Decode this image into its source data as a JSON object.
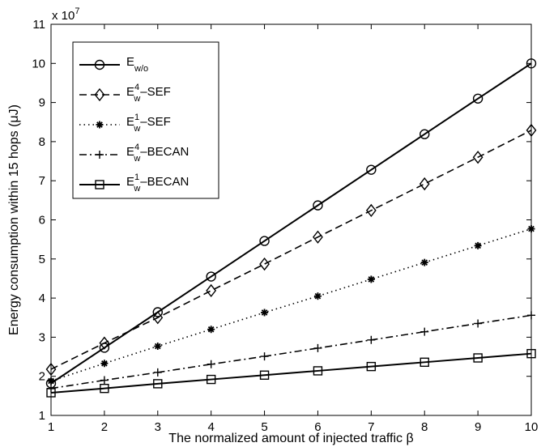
{
  "chart_data": {
    "type": "line",
    "xlabel": "The normalized amount of injected traffic β",
    "ylabel": "Energy consumption within 15 hops (μJ)",
    "y_exponent": "x 10",
    "y_exponent_power": "7",
    "xlim": [
      1,
      10
    ],
    "ylim": [
      1,
      11
    ],
    "xticks": [
      "1",
      "2",
      "3",
      "4",
      "5",
      "6",
      "7",
      "8",
      "9",
      "10"
    ],
    "yticks": [
      "1",
      "2",
      "3",
      "4",
      "5",
      "6",
      "7",
      "8",
      "9",
      "10",
      "11"
    ],
    "grid": false,
    "legend_position": "top-left",
    "x": [
      1,
      2,
      3,
      4,
      5,
      6,
      7,
      8,
      9,
      10
    ],
    "series": [
      {
        "base": "E",
        "sub": "w/o",
        "sup": "",
        "suffix": "",
        "marker": "circle",
        "dash": "solid",
        "values": [
          1.82,
          2.73,
          3.64,
          4.55,
          5.46,
          6.37,
          7.28,
          8.19,
          9.1,
          10.0
        ]
      },
      {
        "base": "E",
        "sub": "w",
        "sup": "4",
        "suffix": "–SEF",
        "marker": "diamond",
        "dash": "dashed",
        "values": [
          2.18,
          2.85,
          3.5,
          4.19,
          4.87,
          5.56,
          6.24,
          6.92,
          7.6,
          8.29
        ]
      },
      {
        "base": "E",
        "sub": "w",
        "sup": "1",
        "suffix": "–SEF",
        "marker": "asterisk",
        "dash": "dotted",
        "values": [
          1.88,
          2.33,
          2.77,
          3.2,
          3.63,
          4.05,
          4.48,
          4.91,
          5.34,
          5.77
        ]
      },
      {
        "base": "E",
        "sub": "w",
        "sup": "4",
        "suffix": "–BECAN",
        "marker": "plus",
        "dash": "dashdot",
        "values": [
          1.69,
          1.9,
          2.1,
          2.31,
          2.51,
          2.72,
          2.93,
          3.14,
          3.35,
          3.56
        ]
      },
      {
        "base": "E",
        "sub": "w",
        "sup": "1",
        "suffix": "–BECAN",
        "marker": "square",
        "dash": "solid",
        "values": [
          1.58,
          1.69,
          1.81,
          1.92,
          2.03,
          2.14,
          2.25,
          2.36,
          2.47,
          2.58
        ]
      }
    ]
  }
}
